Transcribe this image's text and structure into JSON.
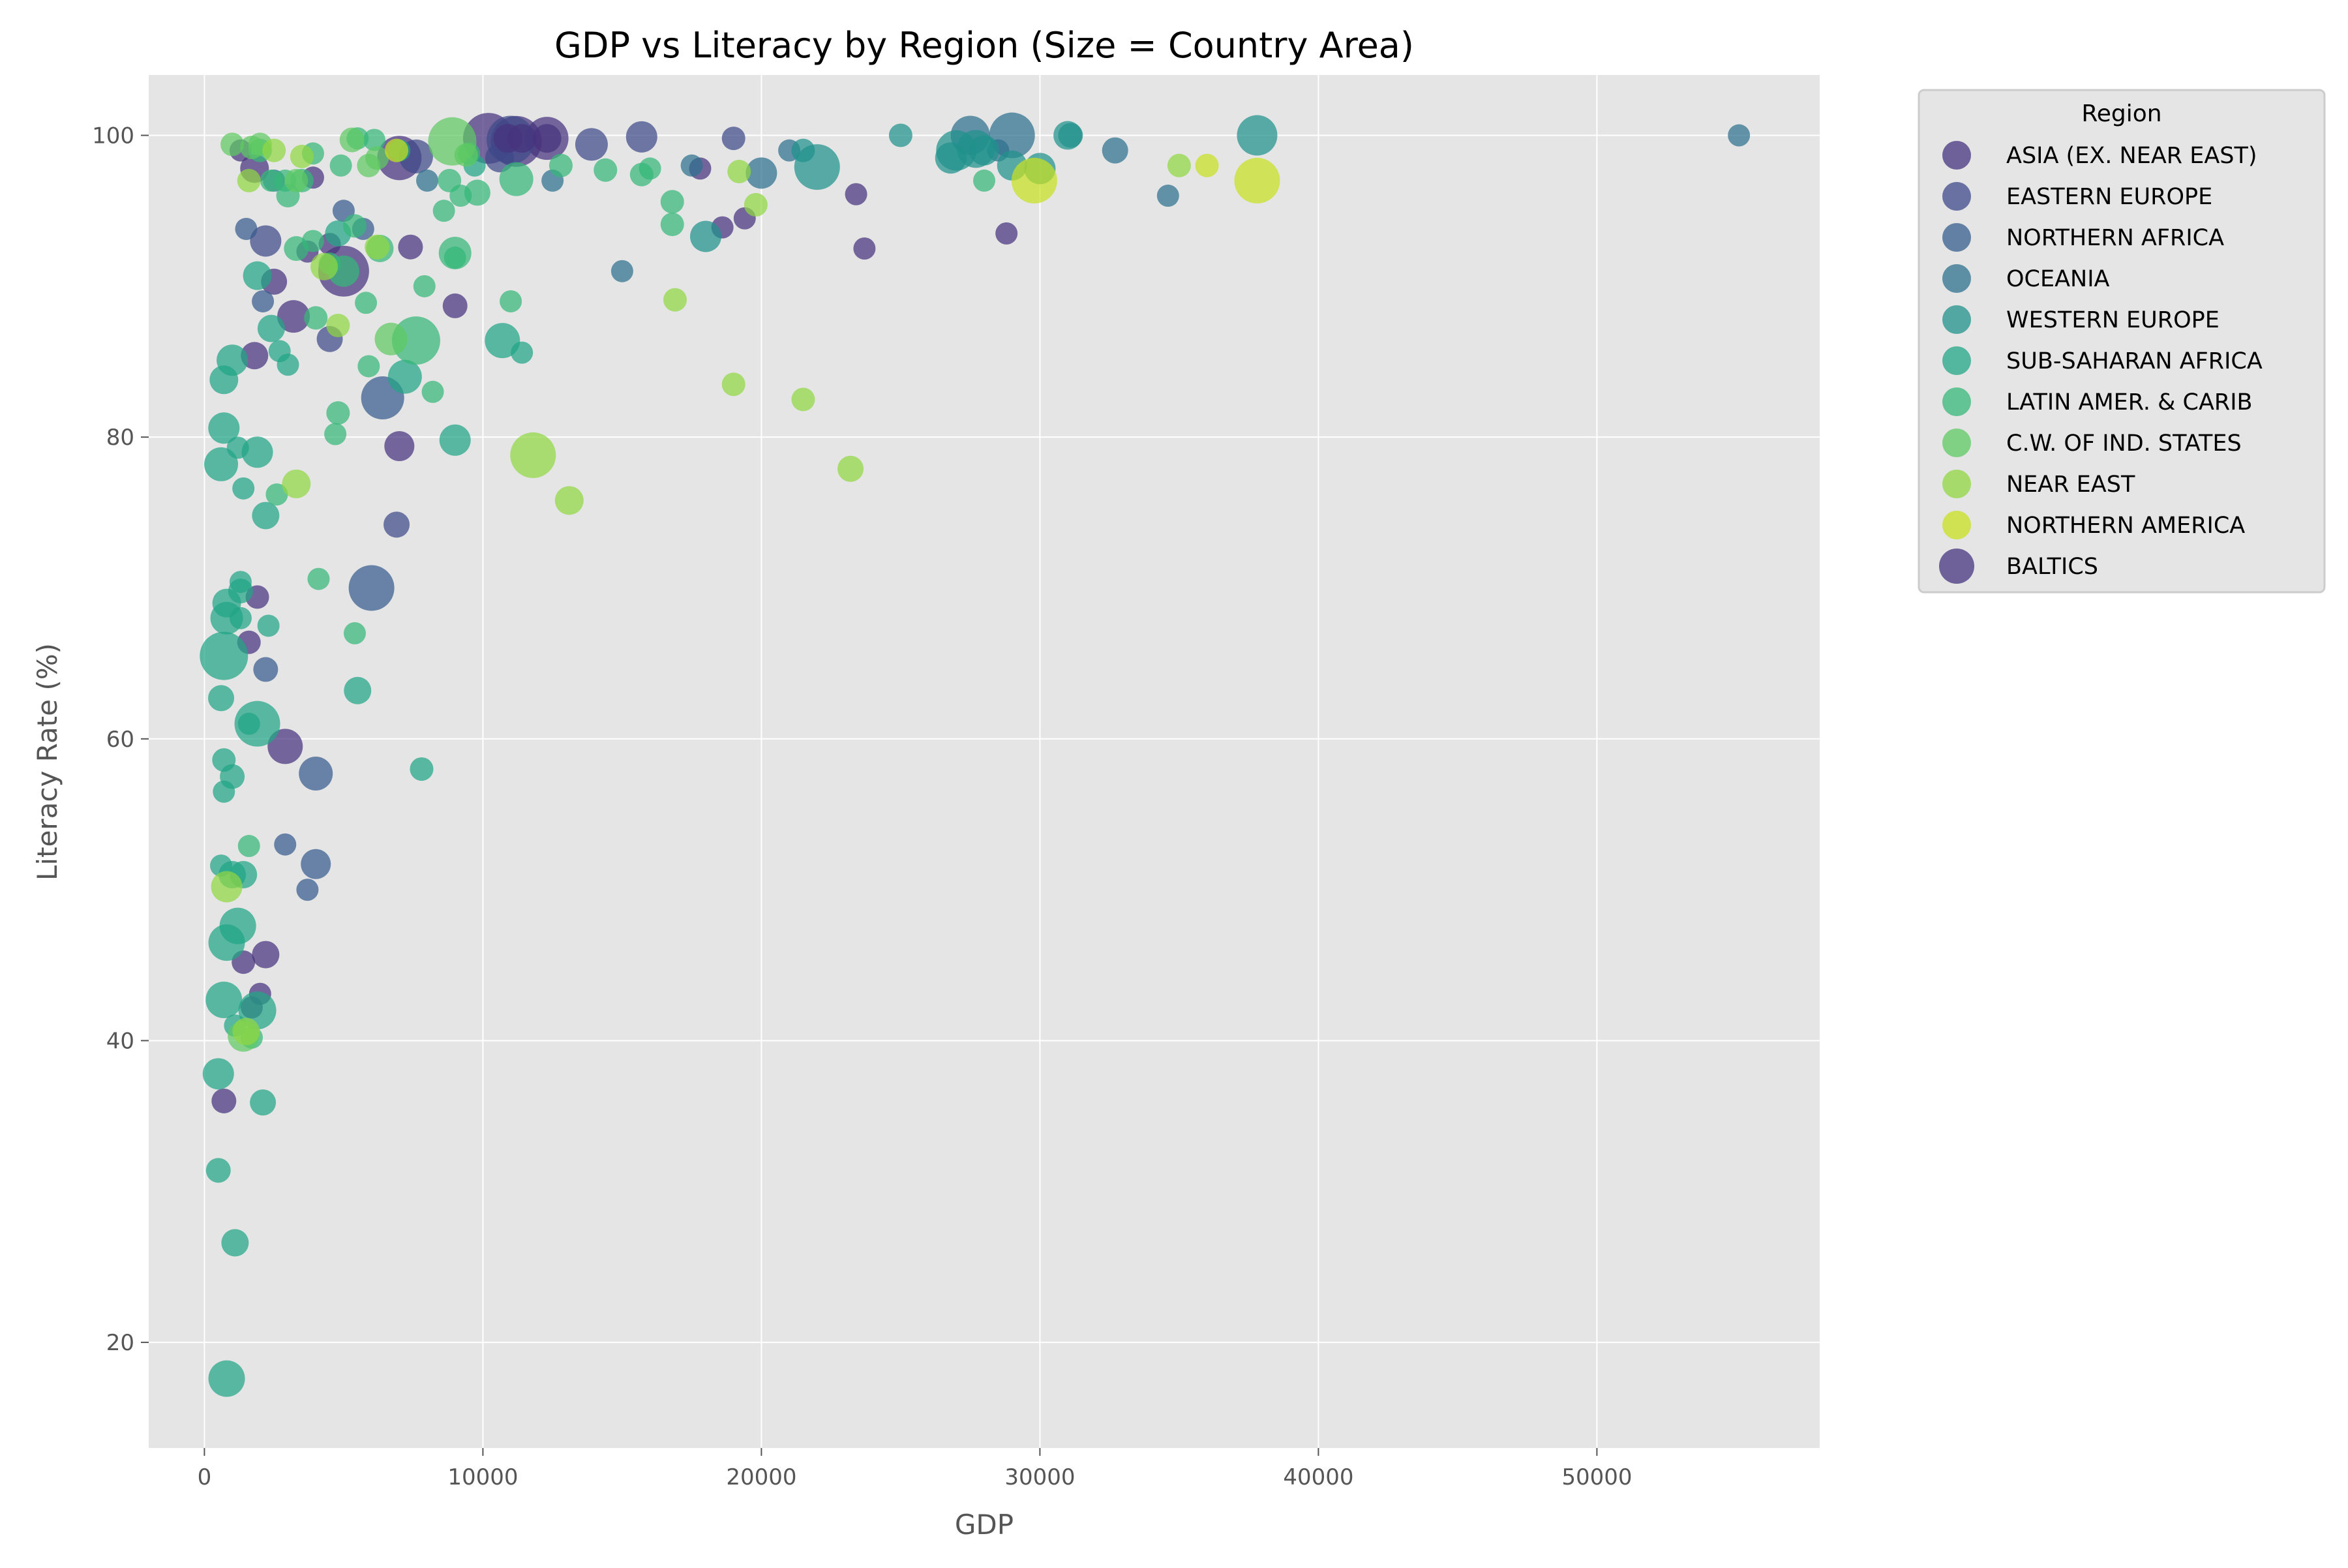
{
  "chart_data": {
    "type": "scatter",
    "title": "GDP vs Literacy by Region (Size = Country Area)",
    "xlabel": "GDP",
    "ylabel": "Literacy Rate (%)",
    "xlim": [
      -2000,
      58000
    ],
    "ylim": [
      13,
      104
    ],
    "xticks": [
      0,
      10000,
      20000,
      30000,
      40000,
      50000
    ],
    "yticks": [
      20,
      40,
      60,
      80,
      100
    ],
    "grid": true,
    "legend": {
      "title": "Region",
      "placement": "outside-top-right",
      "entries": [
        "ASIA (EX. NEAR EAST)",
        "EASTERN EUROPE",
        "NORTHERN AFRICA",
        "OCEANIA",
        "WESTERN EUROPE",
        "SUB-SAHARAN AFRICA",
        "LATIN AMER. & CARIB",
        "C.W. OF IND. STATES",
        "NEAR EAST",
        "NORTHERN AMERICA",
        "BALTICS"
      ]
    },
    "colors": {
      "background": "#e5e5e5",
      "grid": "#ffffff",
      "text": "#555555",
      "c0": "#46337e",
      "c1": "#3e4a89",
      "c2": "#365c8d",
      "c3": "#2d708e",
      "c4": "#20928c",
      "c5": "#21a585",
      "c6": "#35b779",
      "c7": "#5ec962",
      "c8": "#90d743",
      "c9": "#c8e020",
      "c10": "#46337e"
    },
    "series": [
      {
        "name": "ASIA (EX. NEAR EAST)",
        "color_key": "c0",
        "points": [
          [
            10200,
            99.8,
            3
          ],
          [
            11200,
            99.6,
            3
          ],
          [
            12300,
            99.8,
            2.4
          ],
          [
            5000,
            91,
            3
          ],
          [
            7000,
            98.5,
            2.5
          ],
          [
            2900,
            59.5,
            1.8
          ],
          [
            3200,
            88,
            1.6
          ],
          [
            2200,
            45.7,
            1.2
          ],
          [
            7000,
            79.4,
            1.4
          ],
          [
            1800,
            85.4,
            1.2
          ],
          [
            1800,
            97.8,
            1.3
          ],
          [
            2500,
            90.3,
            1.1
          ],
          [
            9000,
            88.7,
            1.0
          ],
          [
            7400,
            92.6,
            1.0
          ],
          [
            4500,
            92.8,
            0.8
          ],
          [
            3700,
            92.3,
            0.8
          ],
          [
            1300,
            99,
            0.8
          ],
          [
            1600,
            66.4,
            0.9
          ],
          [
            700,
            36,
            1.0
          ],
          [
            1900,
            69.4,
            0.9
          ],
          [
            1400,
            45.2,
            0.9
          ],
          [
            2000,
            43.1,
            0.8
          ],
          [
            23400,
            96.1,
            0.8
          ],
          [
            23700,
            92.5,
            0.8
          ],
          [
            18600,
            93.9,
            0.8
          ],
          [
            19400,
            94.5,
            0.8
          ],
          [
            28800,
            93.5,
            0.8
          ],
          [
            17800,
            97.8,
            0.8
          ],
          [
            1700,
            42.2,
            0.8
          ],
          [
            3900,
            97.2,
            0.8
          ]
        ]
      },
      {
        "name": "EASTERN EUROPE",
        "color_key": "c1",
        "points": [
          [
            11000,
            99.7,
            2.8
          ],
          [
            7600,
            98.6,
            1.7
          ],
          [
            13900,
            99.4,
            1.6
          ],
          [
            15700,
            99.9,
            1.5
          ],
          [
            10600,
            98.5,
            1.3
          ],
          [
            2200,
            93,
            1.5
          ],
          [
            4500,
            86.5,
            1.1
          ],
          [
            6900,
            74.2,
            1.1
          ],
          [
            19000,
            99.8,
            0.9
          ]
        ]
      },
      {
        "name": "NORTHERN AFRICA",
        "color_key": "c2",
        "points": [
          [
            6000,
            70,
            2.6
          ],
          [
            6400,
            82.6,
            2.4
          ],
          [
            4000,
            57.7,
            1.7
          ],
          [
            4000,
            51.7,
            1.4
          ],
          [
            2200,
            64.6,
            1.0
          ],
          [
            3700,
            50,
            0.8
          ],
          [
            2900,
            53,
            0.8
          ],
          [
            1500,
            93.8,
            0.8
          ],
          [
            2100,
            89,
            0.8
          ],
          [
            5000,
            95,
            0.8
          ],
          [
            5700,
            93.8,
            0.8
          ]
        ]
      },
      {
        "name": "OCEANIA",
        "color_key": "c3",
        "points": [
          [
            29000,
            100,
            2.6
          ],
          [
            27500,
            100,
            2.1
          ],
          [
            20000,
            97.5,
            1.5
          ],
          [
            32700,
            99,
            1.1
          ],
          [
            15000,
            91,
            0.8
          ],
          [
            34600,
            96,
            0.8
          ],
          [
            55100,
            100,
            0.8
          ],
          [
            21000,
            99,
            0.8
          ],
          [
            8000,
            97,
            0.8
          ],
          [
            12500,
            97,
            0.8
          ],
          [
            28500,
            99,
            0.8
          ],
          [
            17500,
            98,
            0.8
          ],
          [
            2500,
            97,
            0.8
          ]
        ]
      },
      {
        "name": "WESTERN EUROPE",
        "color_key": "c4",
        "points": [
          [
            37800,
            100,
            2.2
          ],
          [
            27000,
            99,
            2.2
          ],
          [
            27700,
            99.1,
            2
          ],
          [
            22000,
            97.9,
            2.6
          ],
          [
            29000,
            98,
            1.4
          ],
          [
            30000,
            97.8,
            1.5
          ],
          [
            31000,
            100,
            1.3
          ],
          [
            31100,
            100,
            1.0
          ],
          [
            18000,
            93.3,
            1.5
          ],
          [
            28000,
            99,
            1.4
          ],
          [
            25000,
            100,
            0.9
          ],
          [
            21500,
            99,
            0.9
          ],
          [
            26800,
            98.5,
            1.5
          ]
        ]
      },
      {
        "name": "SUB-SAHARAN AFRICA",
        "color_key": "c5",
        "points": [
          [
            800,
            17.6,
            1.9
          ],
          [
            1900,
            61,
            2.6
          ],
          [
            700,
            65.5,
            2.8
          ],
          [
            800,
            68,
            1.6
          ],
          [
            700,
            42.7,
            1.9
          ],
          [
            800,
            46.5,
            1.9
          ],
          [
            1200,
            47.6,
            1.9
          ],
          [
            1900,
            42,
            2.0
          ],
          [
            500,
            37.8,
            1.5
          ],
          [
            1100,
            26.6,
            1.2
          ],
          [
            500,
            31.4,
            1.0
          ],
          [
            2100,
            35.9,
            1.1
          ],
          [
            1000,
            51,
            1.2
          ],
          [
            800,
            69,
            1.3
          ],
          [
            1300,
            69.8,
            1.0
          ],
          [
            1000,
            57.5,
            1.0
          ],
          [
            700,
            58.6,
            0.9
          ],
          [
            700,
            80.6,
            1.5
          ],
          [
            600,
            78.2,
            1.7
          ],
          [
            1900,
            79,
            1.5
          ],
          [
            700,
            83.8,
            1.3
          ],
          [
            1000,
            85.1,
            1.5
          ],
          [
            2200,
            74.8,
            1.2
          ],
          [
            1900,
            90.7,
            1.3
          ],
          [
            2400,
            87.2,
            1.2
          ],
          [
            4800,
            93.5,
            1.1
          ],
          [
            5500,
            63.2,
            1.2
          ],
          [
            7200,
            84,
            1.7
          ],
          [
            9000,
            79.8,
            1.5
          ],
          [
            10700,
            86.4,
            1.8
          ],
          [
            7800,
            58,
            0.9
          ],
          [
            1600,
            61,
            0.8
          ],
          [
            600,
            62.7,
            1.1
          ],
          [
            1400,
            76.6,
            0.8
          ],
          [
            2700,
            85.7,
            0.8
          ],
          [
            2300,
            67.5,
            0.8
          ],
          [
            1400,
            51,
            1.2
          ],
          [
            3000,
            84.8,
            0.8
          ],
          [
            1200,
            79.3,
            0.8
          ],
          [
            700,
            56.5,
            0.8
          ],
          [
            11400,
            85.6,
            0.8
          ],
          [
            7000,
            99,
            0.8
          ],
          [
            600,
            51.6,
            0.8
          ],
          [
            1300,
            70.4,
            0.8
          ],
          [
            9700,
            98,
            0.8
          ],
          [
            1300,
            68,
            0.8
          ],
          [
            1100,
            41,
            0.8
          ]
        ]
      },
      {
        "name": "LATIN AMER. & CARIB",
        "color_key": "c6",
        "points": [
          [
            7600,
            86.4,
            2.8
          ],
          [
            11200,
            97.1,
            1.7
          ],
          [
            9000,
            92.2,
            1.6
          ],
          [
            5000,
            91,
            1.5
          ],
          [
            6300,
            92.5,
            1.2
          ],
          [
            3300,
            92.5,
            1.0
          ],
          [
            4800,
            81.6,
            0.9
          ],
          [
            4000,
            87.9,
            0.9
          ],
          [
            9800,
            96.2,
            1.1
          ],
          [
            8800,
            97,
            0.9
          ],
          [
            14400,
            97.7,
            0.9
          ],
          [
            15700,
            97.4,
            0.9
          ],
          [
            12800,
            98,
            0.9
          ],
          [
            16800,
            94.1,
            0.9
          ],
          [
            16800,
            95.6,
            0.9
          ],
          [
            3500,
            97,
            0.9
          ],
          [
            3000,
            96,
            0.9
          ],
          [
            2000,
            99,
            0.9
          ],
          [
            5400,
            94,
            0.9
          ],
          [
            5900,
            84.7,
            0.8
          ],
          [
            4700,
            80.2,
            0.8
          ],
          [
            8200,
            83,
            0.8
          ],
          [
            9200,
            96,
            0.8
          ],
          [
            9500,
            98.8,
            0.8
          ],
          [
            6100,
            99.7,
            0.8
          ],
          [
            2600,
            76.2,
            0.8
          ],
          [
            7900,
            90,
            0.8
          ],
          [
            5800,
            88.9,
            0.8
          ],
          [
            4900,
            98,
            0.8
          ],
          [
            3900,
            93,
            0.8
          ],
          [
            4100,
            70.6,
            0.8
          ],
          [
            11000,
            89,
            0.8
          ],
          [
            28000,
            97,
            0.8
          ],
          [
            1600,
            52.9,
            0.8
          ],
          [
            8600,
            95,
            0.8
          ],
          [
            5400,
            67,
            0.8
          ],
          [
            4500,
            91.5,
            0.8
          ],
          [
            16000,
            97.8,
            0.8
          ],
          [
            9000,
            91.9,
            0.8
          ],
          [
            1700,
            40.2,
            0.8
          ],
          [
            5500,
            99.8,
            0.8
          ],
          [
            2900,
            97,
            0.8
          ],
          [
            2400,
            97,
            0.8
          ],
          [
            3900,
            98.8,
            0.8
          ]
        ]
      },
      {
        "name": "C.W. OF IND. STATES",
        "color_key": "c7",
        "points": [
          [
            8900,
            99.6,
            2.8
          ],
          [
            6700,
            86.5,
            1.6
          ],
          [
            3300,
            97,
            0.9
          ],
          [
            6200,
            98.5,
            0.9
          ],
          [
            5900,
            98,
            0.9
          ],
          [
            9400,
            98.7,
            0.9
          ],
          [
            5300,
            99.7,
            1.0
          ],
          [
            2000,
            99.4,
            0.9
          ],
          [
            1700,
            99.2,
            0.9
          ],
          [
            1000,
            99.4,
            0.9
          ],
          [
            1400,
            40.3,
            1.5
          ]
        ]
      },
      {
        "name": "NEAR EAST",
        "color_key": "c8",
        "points": [
          [
            11800,
            78.8,
            2.6
          ],
          [
            13100,
            75.8,
            1.3
          ],
          [
            23200,
            77.9,
            1.1
          ],
          [
            21500,
            82.5,
            0.9
          ],
          [
            19000,
            83.5,
            0.9
          ],
          [
            16900,
            89.1,
            0.9
          ],
          [
            19800,
            95.4,
            0.9
          ],
          [
            35000,
            98,
            0.9
          ],
          [
            19200,
            97.6,
            0.9
          ],
          [
            4300,
            91.3,
            1.2
          ],
          [
            3300,
            76.9,
            1.3
          ],
          [
            800,
            50.2,
            1.5
          ],
          [
            6200,
            92.6,
            1.0
          ],
          [
            1600,
            97,
            0.9
          ],
          [
            4800,
            87.4,
            0.9
          ],
          [
            1500,
            40.6,
            1.2
          ],
          [
            2500,
            99,
            0.9
          ],
          [
            3500,
            98.6,
            0.9
          ]
        ]
      },
      {
        "name": "NORTHERN AMERICA",
        "color_key": "c9",
        "points": [
          [
            37800,
            97,
            2.6
          ],
          [
            29800,
            97,
            2.6
          ],
          [
            36000,
            98,
            0.9
          ],
          [
            6900,
            99,
            0.9
          ]
        ]
      },
      {
        "name": "BALTICS",
        "color_key": "c10",
        "points": [
          [
            10900,
            99.8,
            1.3
          ],
          [
            11400,
            99.8,
            1.3
          ],
          [
            12300,
            99.8,
            1.3
          ]
        ]
      }
    ]
  }
}
